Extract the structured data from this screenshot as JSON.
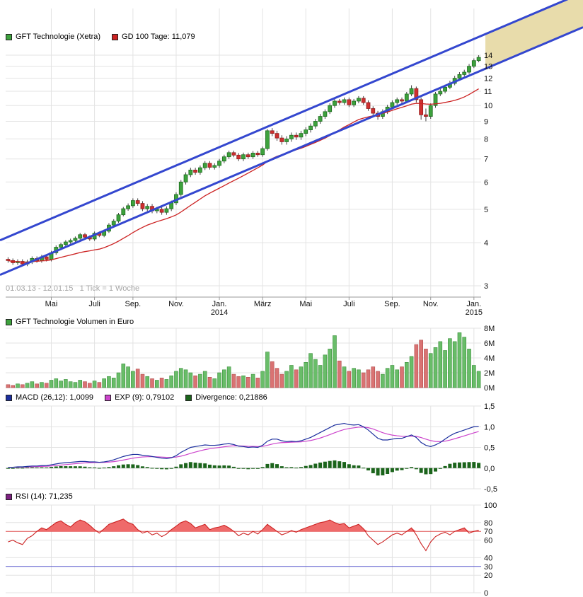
{
  "meta": {
    "watermark": "01.03.13 - 12.01.15   1 Tick = 1 Woche"
  },
  "legends": {
    "price": [
      {
        "color": "#3da23d",
        "label": "GFT Technologie (Xetra)"
      },
      {
        "color": "#cc2222",
        "label": "GD 100 Tage: 11,079"
      }
    ],
    "volume": [
      {
        "color": "#3da23d",
        "label": "GFT Technologie Volumen in Euro"
      }
    ],
    "macd": [
      {
        "color": "#1c2f9e",
        "label": "MACD (26,12): 1,0099"
      },
      {
        "color": "#cc44cc",
        "label": "EXP (9): 0,79102"
      },
      {
        "color": "#1b641b",
        "label": "Divergence: 0,21886"
      }
    ],
    "rsi": [
      {
        "color": "#7d2181",
        "label": "RSI (14): 71,235"
      }
    ]
  },
  "chart_data": [
    {
      "type": "candlestick",
      "title": "GFT Technologie (Xetra) weekly price, EUR",
      "x_axis_note": "01.03.13 - 12.01.15, 1 Tick = 1 Woche",
      "ylog": true,
      "ylim": [
        3,
        14
      ],
      "y_ticks": [
        {
          "v": 14,
          "label": "14"
        },
        {
          "v": 13,
          "label": "13"
        },
        {
          "v": 12,
          "label": "12"
        },
        {
          "v": 11,
          "label": "11"
        },
        {
          "v": 10,
          "label": "10"
        },
        {
          "v": 9,
          "label": "9"
        },
        {
          "v": 8,
          "label": "8"
        },
        {
          "v": 7,
          "label": "7"
        },
        {
          "v": 6,
          "label": "6"
        },
        {
          "v": 5,
          "label": "5"
        },
        {
          "v": 4,
          "label": "4"
        },
        {
          "v": 3,
          "label": "3"
        }
      ],
      "x_labels": [
        {
          "i": 9,
          "t": "Mai"
        },
        {
          "i": 18,
          "t": "Juli"
        },
        {
          "i": 26,
          "t": "Sep."
        },
        {
          "i": 35,
          "t": "Nov."
        },
        {
          "i": 44,
          "t": "Jan.",
          "sub": "2014"
        },
        {
          "i": 53,
          "t": "März"
        },
        {
          "i": 62,
          "t": "Mai"
        },
        {
          "i": 71,
          "t": "Juli"
        },
        {
          "i": 80,
          "t": "Sep."
        },
        {
          "i": 88,
          "t": "Nov."
        },
        {
          "i": 97,
          "t": "Jan.",
          "sub": "2015"
        }
      ],
      "gd100_window_weeks": 20,
      "gd100_last_value": "11,079",
      "channel": {
        "lower_start": 3.3,
        "lower_end": 12.55,
        "width_ratio": 1.26,
        "line_color": "#3447cf",
        "fill_color": "#e8dcab"
      },
      "colors": {
        "up": "#3da23d",
        "up_stroke": "#1e6b1e",
        "down": "#cf3030",
        "down_stroke": "#8f1d1d",
        "ma": "#cc2222",
        "wick": "#444444"
      },
      "candles": [
        [
          3.58,
          3.63,
          3.5,
          3.55
        ],
        [
          3.55,
          3.6,
          3.45,
          3.5
        ],
        [
          3.5,
          3.58,
          3.45,
          3.53
        ],
        [
          3.53,
          3.58,
          3.42,
          3.47
        ],
        [
          3.47,
          3.57,
          3.42,
          3.52
        ],
        [
          3.52,
          3.65,
          3.47,
          3.6
        ],
        [
          3.6,
          3.65,
          3.5,
          3.55
        ],
        [
          3.55,
          3.69,
          3.5,
          3.64
        ],
        [
          3.64,
          3.69,
          3.53,
          3.58
        ],
        [
          3.58,
          3.79,
          3.53,
          3.74
        ],
        [
          3.74,
          3.93,
          3.69,
          3.88
        ],
        [
          3.88,
          4.0,
          3.83,
          3.95
        ],
        [
          3.95,
          4.07,
          3.9,
          4.02
        ],
        [
          4.02,
          4.11,
          3.97,
          4.06
        ],
        [
          4.06,
          4.17,
          4.01,
          4.12
        ],
        [
          4.12,
          4.27,
          4.07,
          4.22
        ],
        [
          4.22,
          4.27,
          4.1,
          4.15
        ],
        [
          4.15,
          4.2,
          4.05,
          4.1
        ],
        [
          4.1,
          4.31,
          4.05,
          4.26
        ],
        [
          4.26,
          4.31,
          4.15,
          4.2
        ],
        [
          4.2,
          4.37,
          4.15,
          4.32
        ],
        [
          4.32,
          4.56,
          4.27,
          4.5
        ],
        [
          4.5,
          4.68,
          4.45,
          4.62
        ],
        [
          4.62,
          4.88,
          4.57,
          4.82
        ],
        [
          4.82,
          5.08,
          4.77,
          5.02
        ],
        [
          5.02,
          5.2,
          4.95,
          5.12
        ],
        [
          5.12,
          5.38,
          5.05,
          5.3
        ],
        [
          5.3,
          5.38,
          5.12,
          5.2
        ],
        [
          5.2,
          5.28,
          4.94,
          5.02
        ],
        [
          5.02,
          5.18,
          4.94,
          5.1
        ],
        [
          5.1,
          5.18,
          4.87,
          4.95
        ],
        [
          4.95,
          5.08,
          4.87,
          5.0
        ],
        [
          5.0,
          5.08,
          4.82,
          4.9
        ],
        [
          4.9,
          5.1,
          4.82,
          5.02
        ],
        [
          5.02,
          5.3,
          4.94,
          5.22
        ],
        [
          5.22,
          5.6,
          5.14,
          5.52
        ],
        [
          5.52,
          6.08,
          5.44,
          6.0
        ],
        [
          6.0,
          6.4,
          5.9,
          6.3
        ],
        [
          6.3,
          6.6,
          6.2,
          6.5
        ],
        [
          6.5,
          6.6,
          6.3,
          6.4
        ],
        [
          6.4,
          6.7,
          6.3,
          6.6
        ],
        [
          6.6,
          6.9,
          6.5,
          6.8
        ],
        [
          6.8,
          6.9,
          6.52,
          6.62
        ],
        [
          6.62,
          6.8,
          6.52,
          6.7
        ],
        [
          6.7,
          7.0,
          6.6,
          6.9
        ],
        [
          6.9,
          7.2,
          6.8,
          7.1
        ],
        [
          7.1,
          7.4,
          7.0,
          7.3
        ],
        [
          7.3,
          7.4,
          7.08,
          7.18
        ],
        [
          7.18,
          7.28,
          6.9,
          7.0
        ],
        [
          7.0,
          7.3,
          6.9,
          7.2
        ],
        [
          7.2,
          7.3,
          7.0,
          7.1
        ],
        [
          7.1,
          7.38,
          7.0,
          7.28
        ],
        [
          7.28,
          7.38,
          7.1,
          7.2
        ],
        [
          7.2,
          7.6,
          7.1,
          7.5
        ],
        [
          7.5,
          8.55,
          7.4,
          8.45
        ],
        [
          8.45,
          8.6,
          8.15,
          8.3
        ],
        [
          8.3,
          8.45,
          7.9,
          8.05
        ],
        [
          8.05,
          8.2,
          7.7,
          7.85
        ],
        [
          7.85,
          8.15,
          7.7,
          8.0
        ],
        [
          8.0,
          8.35,
          7.85,
          8.2
        ],
        [
          8.2,
          8.35,
          7.95,
          8.1
        ],
        [
          8.1,
          8.45,
          7.95,
          8.3
        ],
        [
          8.3,
          8.65,
          8.15,
          8.5
        ],
        [
          8.5,
          8.87,
          8.35,
          8.72
        ],
        [
          8.72,
          9.15,
          8.57,
          9.0
        ],
        [
          9.0,
          9.45,
          8.85,
          9.3
        ],
        [
          9.3,
          9.75,
          9.15,
          9.6
        ],
        [
          9.6,
          10.15,
          9.45,
          10.0
        ],
        [
          10.0,
          10.45,
          9.85,
          10.3
        ],
        [
          10.3,
          10.45,
          10.05,
          10.2
        ],
        [
          10.2,
          10.55,
          10.05,
          10.4
        ],
        [
          10.4,
          10.55,
          9.9,
          10.05
        ],
        [
          10.05,
          10.45,
          9.9,
          10.3
        ],
        [
          10.3,
          10.65,
          10.15,
          10.5
        ],
        [
          10.5,
          10.65,
          10.05,
          10.2
        ],
        [
          10.2,
          10.35,
          9.65,
          9.8
        ],
        [
          9.8,
          9.95,
          9.35,
          9.5
        ],
        [
          9.5,
          9.65,
          9.1,
          9.3
        ],
        [
          9.3,
          9.75,
          9.15,
          9.6
        ],
        [
          9.6,
          10.05,
          9.45,
          9.9
        ],
        [
          9.9,
          10.35,
          9.75,
          10.2
        ],
        [
          10.2,
          10.55,
          10.05,
          10.4
        ],
        [
          10.4,
          10.55,
          10.15,
          10.3
        ],
        [
          10.3,
          10.95,
          10.15,
          10.8
        ],
        [
          10.8,
          11.45,
          10.65,
          11.2
        ],
        [
          11.2,
          11.35,
          10.2,
          10.4
        ],
        [
          10.4,
          10.55,
          9.1,
          9.4
        ],
        [
          9.4,
          9.8,
          9.0,
          9.3
        ],
        [
          9.3,
          10.15,
          9.15,
          10.0
        ],
        [
          10.0,
          10.95,
          9.85,
          10.8
        ],
        [
          10.8,
          11.2,
          10.65,
          11.0
        ],
        [
          11.0,
          11.5,
          10.85,
          11.3
        ],
        [
          11.3,
          11.8,
          11.15,
          11.6
        ],
        [
          11.6,
          12.2,
          11.45,
          12.0
        ],
        [
          12.0,
          12.5,
          11.85,
          12.3
        ],
        [
          12.3,
          12.7,
          12.15,
          12.5
        ],
        [
          12.5,
          13.2,
          12.35,
          13.0
        ],
        [
          13.0,
          13.7,
          12.85,
          13.5
        ],
        [
          13.5,
          14.0,
          13.35,
          13.8
        ]
      ]
    },
    {
      "type": "bar",
      "title": "GFT Technologie Volumen in Euro",
      "unit": "M",
      "ylim": [
        0,
        8
      ],
      "y_ticks": [
        {
          "v": 8,
          "label": "8M"
        },
        {
          "v": 6,
          "label": "6M"
        },
        {
          "v": 4,
          "label": "4M"
        },
        {
          "v": 2,
          "label": "2M"
        },
        {
          "v": 0,
          "label": "0M"
        }
      ],
      "colors": {
        "up": "#69bd69",
        "up_stroke": "#3a8f3a",
        "down": "#d97373",
        "down_stroke": "#b04b4b"
      },
      "values": [
        0.4,
        0.3,
        0.5,
        0.4,
        0.6,
        0.8,
        0.5,
        0.7,
        0.6,
        1.0,
        1.2,
        0.9,
        1.1,
        0.8,
        0.7,
        1.0,
        0.8,
        0.6,
        0.9,
        0.7,
        1.2,
        1.5,
        1.3,
        2.0,
        3.2,
        2.8,
        2.2,
        2.5,
        1.8,
        1.5,
        1.2,
        1.0,
        1.3,
        1.1,
        1.6,
        2.2,
        2.6,
        2.4,
        2.0,
        1.6,
        1.8,
        2.2,
        1.4,
        1.2,
        2.0,
        2.4,
        2.8,
        1.8,
        1.5,
        1.6,
        1.4,
        1.8,
        1.3,
        2.2,
        4.8,
        3.5,
        2.6,
        1.8,
        2.2,
        3.0,
        2.4,
        2.8,
        3.4,
        4.6,
        3.8,
        3.0,
        4.4,
        5.2,
        7.0,
        3.6,
        2.8,
        2.2,
        2.6,
        2.4,
        2.0,
        2.4,
        2.8,
        2.2,
        1.8,
        2.6,
        3.0,
        2.4,
        2.8,
        3.4,
        4.2,
        5.8,
        6.4,
        5.2,
        4.6,
        5.4,
        6.2,
        5.0,
        6.6,
        6.2,
        7.4,
        6.8,
        5.2,
        3.0,
        2.2
      ]
    },
    {
      "type": "line",
      "title": "MACD (26,12) with EXP(9) signal and Divergence histogram",
      "ylim": [
        -0.5,
        1.5
      ],
      "y_ticks": [
        {
          "v": 1.5,
          "label": "1,5"
        },
        {
          "v": 1.0,
          "label": "1,0"
        },
        {
          "v": 0.5,
          "label": "0,5"
        },
        {
          "v": 0.0,
          "label": "0,0"
        },
        {
          "v": -0.5,
          "label": "-0,5"
        }
      ],
      "signal_period": 9,
      "last_values": {
        "macd": "1,0099",
        "exp": "0,79102",
        "divergence": "0,21886"
      },
      "colors": {
        "macd": "#1c2f9e",
        "signal": "#cc44cc",
        "histogram": "#1b641b"
      },
      "macd": [
        0.02,
        0.02,
        0.03,
        0.03,
        0.04,
        0.05,
        0.05,
        0.06,
        0.06,
        0.08,
        0.1,
        0.12,
        0.13,
        0.14,
        0.15,
        0.16,
        0.16,
        0.15,
        0.15,
        0.14,
        0.15,
        0.17,
        0.2,
        0.24,
        0.28,
        0.31,
        0.33,
        0.33,
        0.31,
        0.3,
        0.28,
        0.26,
        0.24,
        0.23,
        0.25,
        0.3,
        0.38,
        0.44,
        0.5,
        0.52,
        0.54,
        0.56,
        0.55,
        0.55,
        0.56,
        0.58,
        0.59,
        0.57,
        0.53,
        0.52,
        0.5,
        0.51,
        0.5,
        0.55,
        0.65,
        0.7,
        0.7,
        0.66,
        0.64,
        0.65,
        0.64,
        0.66,
        0.7,
        0.74,
        0.8,
        0.86,
        0.92,
        0.98,
        1.04,
        1.06,
        1.08,
        1.05,
        1.04,
        1.05,
        1.0,
        0.92,
        0.82,
        0.72,
        0.68,
        0.68,
        0.7,
        0.72,
        0.72,
        0.76,
        0.8,
        0.74,
        0.62,
        0.55,
        0.52,
        0.56,
        0.62,
        0.7,
        0.78,
        0.84,
        0.88,
        0.92,
        0.96,
        1.0,
        1.01
      ]
    },
    {
      "type": "area",
      "title": "RSI (14)",
      "ylim": [
        0,
        100
      ],
      "y_ticks": [
        {
          "v": 100,
          "label": "100"
        },
        {
          "v": 80,
          "label": "80"
        },
        {
          "v": 60,
          "label": "60"
        },
        {
          "v": 40,
          "label": "40"
        },
        {
          "v": 20,
          "label": "20"
        },
        {
          "v": 0,
          "label": "0"
        }
      ],
      "special_ticks": [
        {
          "v": 70,
          "label": "70",
          "color": "#e05050"
        },
        {
          "v": 30,
          "label": "30",
          "color": "#5555cc"
        }
      ],
      "overbought": 70,
      "oversold": 30,
      "last_value": "71,235",
      "colors": {
        "line": "#cc2222",
        "fill": "#ef6a6a",
        "overbought_line": "#e05050",
        "oversold_line": "#5555cc"
      },
      "values": [
        58,
        60,
        57,
        55,
        62,
        65,
        70,
        74,
        72,
        76,
        80,
        82,
        78,
        75,
        80,
        83,
        81,
        77,
        72,
        68,
        73,
        78,
        80,
        82,
        84,
        80,
        78,
        72,
        68,
        70,
        66,
        68,
        64,
        67,
        72,
        76,
        80,
        82,
        79,
        74,
        76,
        78,
        72,
        74,
        75,
        77,
        74,
        70,
        65,
        68,
        66,
        70,
        67,
        72,
        78,
        74,
        70,
        66,
        68,
        71,
        69,
        72,
        74,
        76,
        78,
        80,
        81,
        83,
        80,
        78,
        79,
        74,
        76,
        78,
        73,
        65,
        60,
        55,
        58,
        62,
        66,
        68,
        66,
        70,
        74,
        66,
        56,
        48,
        58,
        64,
        67,
        69,
        66,
        70,
        72,
        74,
        68,
        70,
        71.2
      ]
    }
  ]
}
